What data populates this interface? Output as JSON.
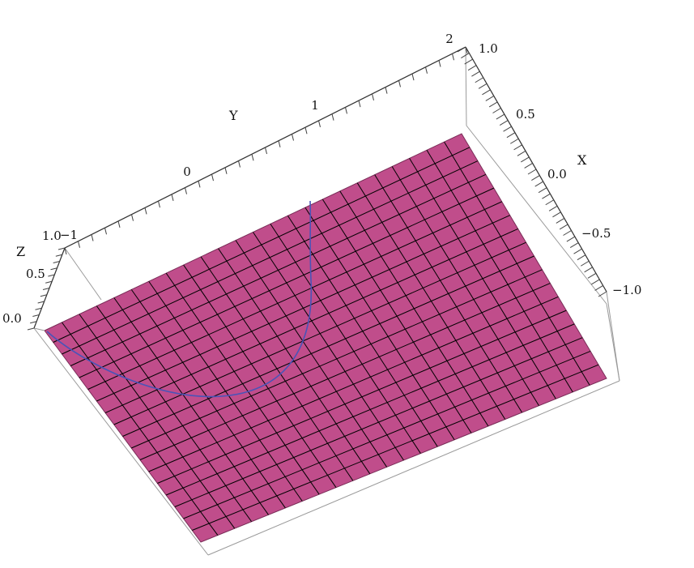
{
  "chart_data": {
    "type": "surface3d",
    "plot_type": "3d-surface",
    "surface": {
      "shape": "plane",
      "color": "#c04d8b",
      "grid_lines": "#000000",
      "grid_x_divisions": 18,
      "grid_y_divisions": 24
    },
    "curve": {
      "color": "#4a54b8",
      "shape": "semicircular arc on the surface"
    },
    "axes": {
      "x": {
        "label": "X",
        "range": [
          -1.0,
          1.0
        ],
        "ticks": [
          "1.0",
          "0.5",
          "0.0",
          "−0.5",
          "−1.0"
        ]
      },
      "y": {
        "label": "Y",
        "range": [
          -1,
          2
        ],
        "ticks": [
          "−1",
          "0",
          "1",
          "2"
        ]
      },
      "z": {
        "label": "Z",
        "range": [
          0.0,
          1.0
        ],
        "ticks": [
          "0.0",
          "0.5",
          "1.0"
        ]
      }
    },
    "box": true,
    "grid": true,
    "legend": "none",
    "title": ""
  }
}
